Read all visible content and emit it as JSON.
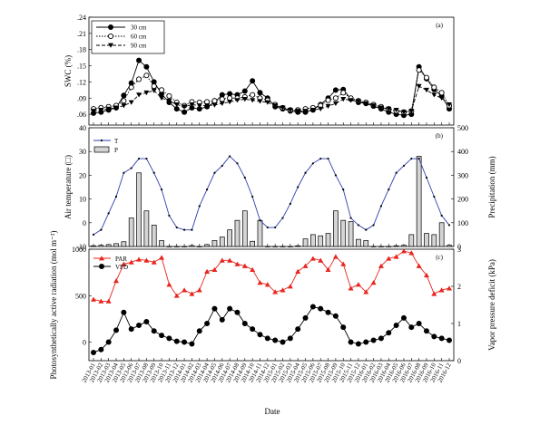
{
  "x_axis": {
    "label": "Date",
    "ticks": [
      "2013-01",
      "2013-02",
      "2013-03",
      "2013-04",
      "2013-05",
      "2013-06",
      "2013-07",
      "2013-08",
      "2013-09",
      "2013-10",
      "2013-11",
      "2013-12",
      "2014-01",
      "2014-02",
      "2014-03",
      "2014-04",
      "2014-05",
      "2014-06",
      "2014-07",
      "2014-08",
      "2014-09",
      "2014-10",
      "2014-11",
      "2014-12",
      "2015-01",
      "2015-02",
      "2015-03",
      "2015-04",
      "2015-05",
      "2015-06",
      "2015-07",
      "2015-08",
      "2015-09",
      "2015-10",
      "2015-11",
      "2015-12",
      "2016-01",
      "2016-02",
      "2016-03",
      "2016-04",
      "2016-05",
      "2016-06",
      "2016-07",
      "2016-08",
      "2016-09",
      "2016-10",
      "2016-11",
      "2016-12"
    ]
  },
  "chart_data": [
    {
      "type": "line",
      "panel_label": "(a)",
      "ylabel": "SWC (%)",
      "ylim": [
        0.04,
        0.24
      ],
      "yticks": [
        ".06",
        ".09",
        ".12",
        ".15",
        ".18",
        ".21",
        ".24"
      ],
      "legend_position": "top-left",
      "series": [
        {
          "name": "30 cm",
          "marker": "filled-circle",
          "line": "solid",
          "values": [
            0.062,
            0.064,
            0.068,
            0.072,
            0.095,
            0.118,
            0.16,
            0.148,
            0.12,
            0.098,
            0.082,
            0.07,
            0.064,
            0.072,
            0.07,
            0.074,
            0.082,
            0.096,
            0.098,
            0.096,
            0.103,
            0.122,
            0.1,
            0.09,
            0.074,
            0.07,
            0.066,
            0.064,
            0.064,
            0.068,
            0.078,
            0.09,
            0.105,
            0.106,
            0.088,
            0.082,
            0.08,
            0.075,
            0.07,
            0.064,
            0.06,
            0.058,
            0.06,
            0.148,
            0.126,
            0.106,
            0.094,
            0.07
          ]
        },
        {
          "name": "60 cm",
          "marker": "open-circle",
          "line": "dotted",
          "values": [
            0.07,
            0.072,
            0.074,
            0.076,
            0.085,
            0.11,
            0.125,
            0.132,
            0.112,
            0.105,
            0.094,
            0.082,
            0.076,
            0.083,
            0.082,
            0.083,
            0.085,
            0.088,
            0.09,
            0.09,
            0.092,
            0.096,
            0.09,
            0.086,
            0.078,
            0.072,
            0.068,
            0.068,
            0.07,
            0.072,
            0.076,
            0.086,
            0.09,
            0.1,
            0.09,
            0.085,
            0.082,
            0.078,
            0.074,
            0.07,
            0.066,
            0.064,
            0.066,
            0.142,
            0.128,
            0.11,
            0.1,
            0.076
          ]
        },
        {
          "name": "90 cm",
          "marker": "filled-triangle-down",
          "line": "dashed",
          "values": [
            0.066,
            0.068,
            0.07,
            0.072,
            0.076,
            0.082,
            0.096,
            0.1,
            0.104,
            0.09,
            0.085,
            0.078,
            0.074,
            0.078,
            0.076,
            0.076,
            0.077,
            0.08,
            0.083,
            0.086,
            0.088,
            0.086,
            0.084,
            0.082,
            0.076,
            0.072,
            0.068,
            0.066,
            0.066,
            0.068,
            0.07,
            0.075,
            0.08,
            0.088,
            0.086,
            0.084,
            0.08,
            0.076,
            0.072,
            0.07,
            0.068,
            0.064,
            0.066,
            0.112,
            0.105,
            0.096,
            0.09,
            0.078
          ]
        }
      ]
    },
    {
      "type": "line",
      "panel_label": "(b)",
      "ylabel": "Air temperature (□)",
      "y2label": "Precipitation (mm)",
      "ylim": [
        -10,
        40
      ],
      "y2lim": [
        0,
        500
      ],
      "yticks": [
        "-10",
        "0",
        "10",
        "20",
        "30",
        "40"
      ],
      "y2ticks": [
        "0",
        "100",
        "200",
        "300",
        "400",
        "500"
      ],
      "legend_position": "top-left",
      "series": [
        {
          "name": "T",
          "axis": "left",
          "render": "line",
          "values": [
            -5,
            -3,
            4,
            11,
            21,
            23,
            27,
            27,
            21,
            14,
            3,
            -2,
            -3,
            -3,
            7,
            14,
            21,
            24,
            28,
            25,
            19,
            11,
            1,
            -2,
            -2,
            2,
            8,
            15,
            21,
            25,
            27,
            27,
            20,
            14,
            2,
            -1,
            -3,
            -1,
            7,
            14,
            21,
            24,
            27,
            27,
            19,
            11,
            3,
            -1
          ]
        },
        {
          "name": "P",
          "axis": "right",
          "render": "bar",
          "values": [
            3,
            5,
            8,
            12,
            20,
            120,
            310,
            150,
            90,
            25,
            0,
            0,
            0,
            4,
            0,
            8,
            25,
            40,
            70,
            110,
            150,
            22,
            110,
            0,
            0,
            0,
            0,
            3,
            32,
            50,
            45,
            55,
            150,
            110,
            105,
            30,
            25,
            0,
            0,
            0,
            3,
            5,
            50,
            380,
            55,
            50,
            100,
            5
          ]
        }
      ]
    },
    {
      "type": "line",
      "panel_label": "(c)",
      "ylabel": "Photosynthetically active radiation (mol m⁻²)",
      "y2label": "Vapor pressure deficit (kPa)",
      "ylim": [
        -200,
        1000
      ],
      "y2lim": [
        0,
        3
      ],
      "yticks": [
        "0",
        "500",
        "1000"
      ],
      "y2ticks": [
        "0",
        "1",
        "2",
        "3"
      ],
      "legend_position": "top-left",
      "series": [
        {
          "name": "PAR",
          "axis": "left",
          "marker": "filled-triangle-up",
          "values": [
            460,
            440,
            440,
            660,
            840,
            860,
            890,
            880,
            860,
            910,
            620,
            500,
            560,
            520,
            560,
            760,
            780,
            880,
            880,
            840,
            820,
            780,
            640,
            620,
            540,
            560,
            600,
            760,
            820,
            900,
            880,
            780,
            920,
            840,
            580,
            620,
            540,
            640,
            820,
            900,
            920,
            980,
            960,
            820,
            720,
            520,
            560,
            580
          ]
        },
        {
          "name": "VPD",
          "axis": "right",
          "marker": "filled-circle",
          "values": [
            0.22,
            0.3,
            0.5,
            0.82,
            1.3,
            0.85,
            0.95,
            1.05,
            0.8,
            0.68,
            0.6,
            0.52,
            0.5,
            0.45,
            0.8,
            1.0,
            1.4,
            1.1,
            1.4,
            1.3,
            1.0,
            0.85,
            0.7,
            0.6,
            0.55,
            0.5,
            0.6,
            0.85,
            1.15,
            1.45,
            1.4,
            1.3,
            1.2,
            0.9,
            0.5,
            0.45,
            0.5,
            0.55,
            0.6,
            0.75,
            0.95,
            1.15,
            0.9,
            1.0,
            0.8,
            0.65,
            0.6,
            0.55
          ]
        }
      ]
    }
  ]
}
